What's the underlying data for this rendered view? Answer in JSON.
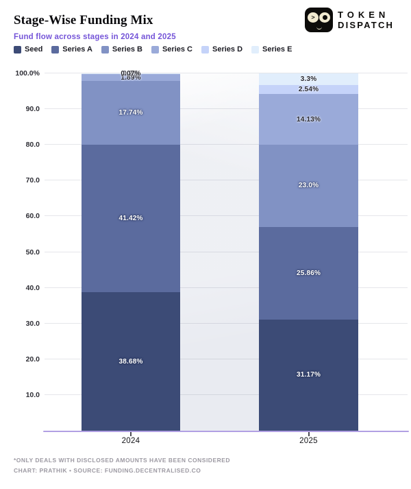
{
  "header": {
    "title": "Stage-Wise Funding Mix",
    "subtitle": "Fund flow across stages in 2024 and 2025"
  },
  "logo": {
    "line1": "TOKEN",
    "line2": "DISPATCH",
    "squint_glyph": ">"
  },
  "chart_data": {
    "type": "bar",
    "stacked": true,
    "unit": "%",
    "title": "Stage-Wise Funding Mix",
    "categories": [
      "2024",
      "2025"
    ],
    "series": [
      {
        "name": "Seed",
        "color": "#3c4b76",
        "values": [
          38.68,
          31.17
        ],
        "labels": [
          "38.68%",
          "31.17%"
        ],
        "text": "light"
      },
      {
        "name": "Series A",
        "color": "#5b6b9e",
        "values": [
          41.42,
          25.86
        ],
        "labels": [
          "41.42%",
          "25.86%"
        ],
        "text": "light"
      },
      {
        "name": "Series B",
        "color": "#8192c4",
        "values": [
          17.74,
          23.0
        ],
        "labels": [
          "17.74%",
          "23.0%"
        ],
        "text": "light"
      },
      {
        "name": "Series C",
        "color": "#9aaad9",
        "values": [
          1.89,
          14.13
        ],
        "labels": [
          "1.89%",
          "14.13%"
        ],
        "text": "dark"
      },
      {
        "name": "Series D",
        "color": "#c5d3f9",
        "values": [
          0.2,
          2.54
        ],
        "labels": [
          "0.2%",
          "2.54%"
        ],
        "text": "dark"
      },
      {
        "name": "Series E",
        "color": "#e1eefc",
        "values": [
          0.07,
          3.3
        ],
        "labels": [
          "0.07%",
          "3.3%"
        ],
        "text": "dark"
      }
    ],
    "y_ticks": [
      {
        "label": "100.0%",
        "value": 100
      },
      {
        "label": "90.0",
        "value": 90
      },
      {
        "label": "80.0",
        "value": 80
      },
      {
        "label": "70.0",
        "value": 70
      },
      {
        "label": "60.0",
        "value": 60
      },
      {
        "label": "50.0",
        "value": 50
      },
      {
        "label": "40.0",
        "value": 40
      },
      {
        "label": "30.0",
        "value": 30
      },
      {
        "label": "20.0",
        "value": 20
      },
      {
        "label": "10.0",
        "value": 10
      }
    ],
    "ylim": [
      0,
      100
    ],
    "grid": true,
    "legend_position": "top",
    "axis_color": "#b1a0e3",
    "flow_band_color": "#e9ebf1"
  },
  "footer": {
    "note": "*ONLY DEALS WITH DISCLOSED AMOUNTS HAVE BEEN CONSIDERED",
    "credit": "CHART: PRATHIK • SOURCE: FUNDING.DECENTRALISED.CO"
  }
}
